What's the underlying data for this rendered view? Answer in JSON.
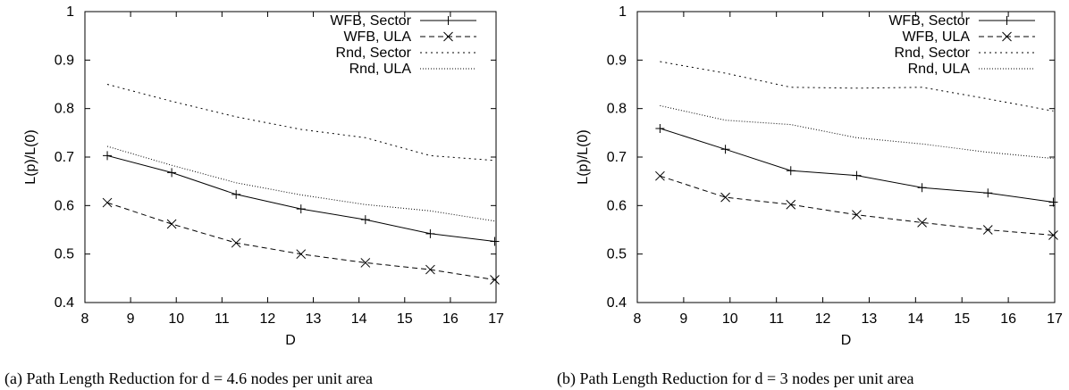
{
  "chart_data": [
    {
      "type": "line",
      "xlabel": "D",
      "ylabel": "L(p)/L(0)",
      "xlim": [
        8,
        17
      ],
      "ylim": [
        0.4,
        1
      ],
      "xticks": [
        "8",
        "9",
        "10",
        "11",
        "12",
        "13",
        "14",
        "15",
        "16",
        "17"
      ],
      "yticks": [
        "0.4",
        "0.5",
        "0.6",
        "0.7",
        "0.8",
        "0.9",
        "1"
      ],
      "legend_position": "top-right",
      "grid": false,
      "caption": "(a) Path Length Reduction for d = 4.6 nodes per unit area",
      "series": [
        {
          "name": "WFB, Sector",
          "style": "solid",
          "marker": "plus",
          "x": [
            8.49,
            9.9,
            11.31,
            12.73,
            14.14,
            15.56,
            16.97
          ],
          "y": [
            0.703,
            0.668,
            0.623,
            0.593,
            0.571,
            0.542,
            0.526
          ]
        },
        {
          "name": "WFB, ULA",
          "style": "dashed",
          "marker": "cross",
          "x": [
            8.49,
            9.9,
            11.31,
            12.73,
            14.14,
            15.56,
            16.97
          ],
          "y": [
            0.606,
            0.562,
            0.523,
            0.5,
            0.482,
            0.468,
            0.447
          ]
        },
        {
          "name": "Rnd, Sector",
          "style": "dotted-sparse",
          "marker": "none",
          "x": [
            8.49,
            9.9,
            11.31,
            12.73,
            14.14,
            15.56,
            16.97
          ],
          "y": [
            0.85,
            0.815,
            0.783,
            0.757,
            0.74,
            0.703,
            0.693
          ]
        },
        {
          "name": "Rnd, ULA",
          "style": "dotted-dense",
          "marker": "none",
          "x": [
            8.49,
            9.9,
            11.31,
            12.73,
            14.14,
            15.56,
            16.97
          ],
          "y": [
            0.722,
            0.683,
            0.647,
            0.622,
            0.602,
            0.589,
            0.568
          ]
        }
      ]
    },
    {
      "type": "line",
      "xlabel": "D",
      "ylabel": "L(p)/L(0)",
      "xlim": [
        8,
        17
      ],
      "ylim": [
        0.4,
        1
      ],
      "xticks": [
        "8",
        "9",
        "10",
        "11",
        "12",
        "13",
        "14",
        "15",
        "16",
        "17"
      ],
      "yticks": [
        "0.4",
        "0.5",
        "0.6",
        "0.7",
        "0.8",
        "0.9",
        "1"
      ],
      "legend_position": "top-right",
      "grid": false,
      "caption": "(b) Path Length Reduction for d = 3 nodes per unit area",
      "series": [
        {
          "name": "WFB, Sector",
          "style": "solid",
          "marker": "plus",
          "x": [
            8.49,
            9.9,
            11.31,
            12.73,
            14.14,
            15.56,
            16.97
          ],
          "y": [
            0.759,
            0.716,
            0.672,
            0.662,
            0.637,
            0.626,
            0.607
          ]
        },
        {
          "name": "WFB, ULA",
          "style": "dashed",
          "marker": "cross",
          "x": [
            8.49,
            9.9,
            11.31,
            12.73,
            14.14,
            15.56,
            16.97
          ],
          "y": [
            0.661,
            0.617,
            0.602,
            0.581,
            0.565,
            0.55,
            0.539
          ]
        },
        {
          "name": "Rnd, Sector",
          "style": "dotted-sparse",
          "marker": "none",
          "x": [
            8.49,
            9.9,
            11.31,
            12.73,
            14.14,
            15.56,
            16.97
          ],
          "y": [
            0.897,
            0.873,
            0.844,
            0.842,
            0.844,
            0.82,
            0.795
          ]
        },
        {
          "name": "Rnd, ULA",
          "style": "dotted-dense",
          "marker": "none",
          "x": [
            8.49,
            9.9,
            11.31,
            12.73,
            14.14,
            15.56,
            16.97
          ],
          "y": [
            0.806,
            0.776,
            0.767,
            0.74,
            0.727,
            0.71,
            0.697
          ]
        }
      ]
    }
  ]
}
